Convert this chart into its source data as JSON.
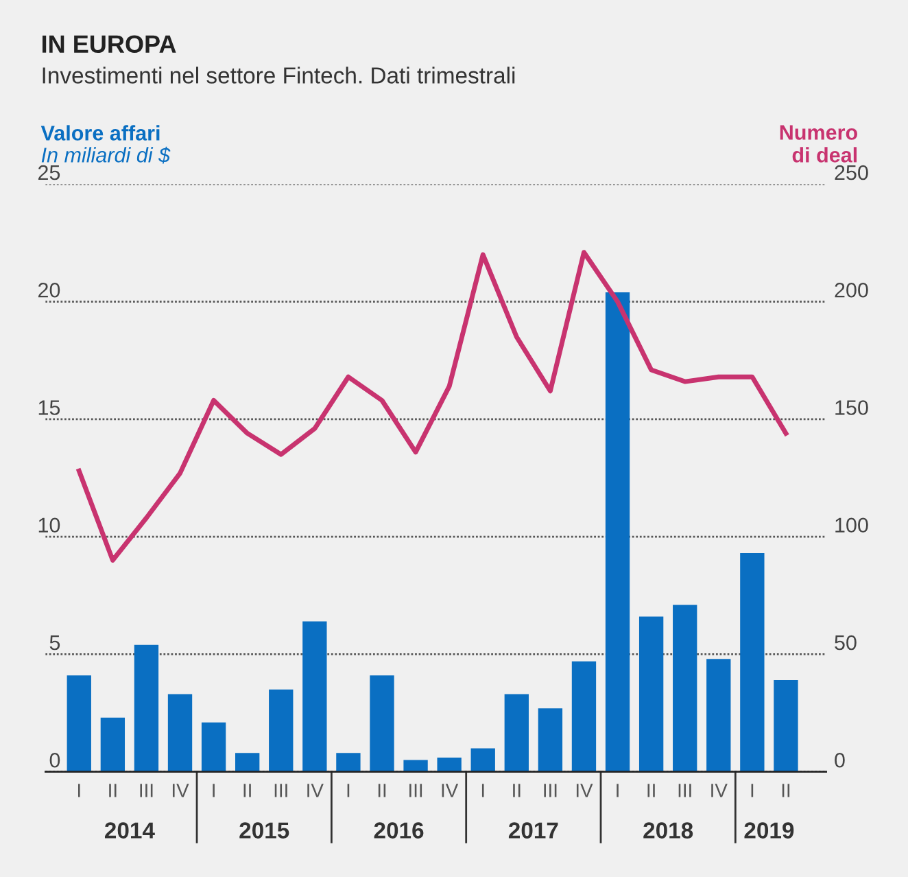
{
  "chart_data": {
    "type": "bar",
    "title": "IN EUROPA",
    "subtitle": "Investimenti nel settore Fintech. Dati trimestrali",
    "annotations": [
      "In miliardi di $",
      "2014",
      "2015",
      "2016",
      "2017",
      "2018",
      "2019"
    ],
    "categories": [
      "I",
      "II",
      "III",
      "IV",
      "I",
      "II",
      "III",
      "IV",
      "I",
      "II",
      "III",
      "IV",
      "I",
      "II",
      "III",
      "IV",
      "I",
      "II",
      "III",
      "IV",
      "I",
      "II"
    ],
    "series": [
      {
        "name": "Valore affari",
        "color": "#0a6fc2",
        "values": [
          4.1,
          2.3,
          5.4,
          3.3,
          2.1,
          0.8,
          3.5,
          6.4,
          0.8,
          4.1,
          0.5,
          0.6,
          1.0,
          3.3,
          2.7,
          4.7,
          20.4,
          6.6,
          7.1,
          4.8,
          9.3,
          3.9
        ]
      },
      {
        "name": "Numero\ndi deal",
        "type": "line",
        "axis": "y2",
        "color": "#c8336f",
        "values": [
          128,
          90,
          108,
          127,
          158,
          144,
          135,
          146,
          168,
          158,
          136,
          164,
          220,
          185,
          162,
          221,
          200,
          171,
          166,
          168,
          168,
          144
        ]
      }
    ],
    "ylim": [
      0,
      25
    ],
    "yticks": [
      0,
      5,
      10,
      15,
      20,
      25
    ],
    "y2lim": [
      0,
      250
    ],
    "y2ticks": [
      0,
      50,
      100,
      150,
      200,
      250
    ],
    "grid": "y",
    "legend": false
  }
}
